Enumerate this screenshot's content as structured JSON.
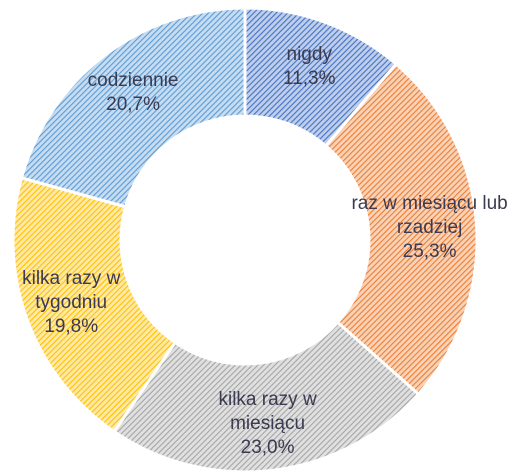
{
  "chart_data": {
    "type": "donut",
    "categories": [
      "nigdy",
      "raz w miesiącu lub rzadziej",
      "kilka razy w miesiącu",
      "kilka razy w tygodniu",
      "codziennie"
    ],
    "values": [
      11.3,
      25.3,
      23.0,
      19.8,
      20.7
    ],
    "value_labels": [
      "11,3%",
      "25,3%",
      "23,0%",
      "19,8%",
      "20,7%"
    ],
    "colors": [
      "#4472c4",
      "#ed7d31",
      "#a5a5a5",
      "#ffc000",
      "#5b9bd5"
    ]
  }
}
